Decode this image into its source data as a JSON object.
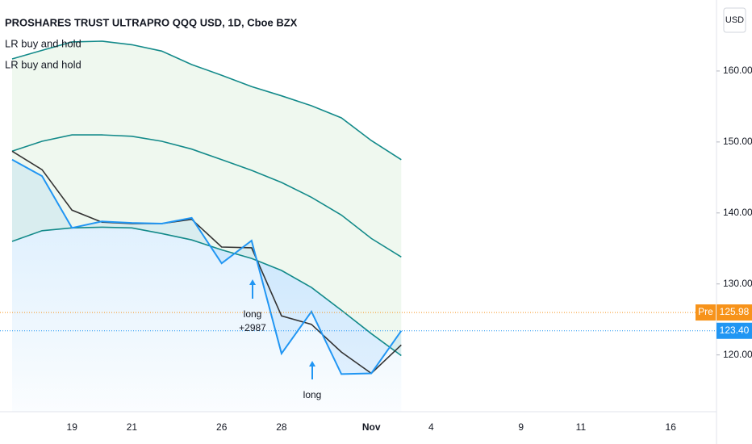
{
  "chart_data": {
    "type": "line",
    "title": "PROSHARES TRUST ULTRAPRO QQQ USD, 1D, Cboe BZX",
    "indicators": [
      "LR buy and hold",
      "LR buy and hold"
    ],
    "currency": "USD",
    "categories": [
      null,
      null,
      "19",
      null,
      "21",
      null,
      null,
      "26",
      null,
      "28",
      null,
      null,
      "Nov",
      null,
      "4",
      null,
      null,
      "9",
      null,
      "11",
      null,
      null,
      "16",
      null
    ],
    "series": [
      {
        "color": "#138a8a",
        "values": [
          161.7,
          162.9,
          164.1,
          164.2,
          163.7,
          162.8,
          160.9,
          159.4,
          157.8,
          156.5,
          155.1,
          153.4,
          150.2,
          147.5,
          null,
          null,
          null,
          null,
          null,
          null,
          null,
          null,
          null,
          null
        ]
      },
      {
        "color": "#138a8a",
        "values": [
          148.7,
          150.1,
          151.0,
          151.0,
          150.8,
          150.1,
          149.0,
          147.5,
          146.0,
          144.3,
          142.2,
          139.7,
          136.4,
          133.8,
          null,
          null,
          null,
          null,
          null,
          null,
          null,
          null,
          null,
          null
        ]
      },
      {
        "color": "#138a8a",
        "values": [
          136.0,
          137.5,
          137.9,
          138.0,
          137.9,
          137.1,
          136.2,
          134.8,
          133.6,
          131.9,
          129.5,
          126.3,
          123.0,
          119.9,
          null,
          null,
          null,
          null,
          null,
          null,
          null,
          null,
          null,
          null
        ]
      },
      {
        "color": "#333333",
        "values": [
          148.7,
          146.1,
          140.4,
          138.7,
          138.5,
          138.5,
          139.1,
          135.2,
          135.1,
          125.5,
          124.3,
          120.4,
          117.4,
          121.4,
          null,
          null,
          null,
          null,
          null,
          null,
          null,
          null,
          null,
          null
        ]
      },
      {
        "color": "#2196f3",
        "values": [
          147.5,
          145.2,
          137.9,
          138.8,
          138.6,
          138.5,
          139.3,
          132.9,
          136.1,
          120.2,
          126.1,
          117.3,
          117.4,
          123.4,
          null,
          null,
          null,
          null,
          null,
          null,
          null,
          null,
          null,
          null
        ]
      }
    ],
    "ylim": [
      112,
      170
    ],
    "yticks": [
      {
        "value": 120,
        "label": "120.00"
      },
      {
        "value": 130,
        "label": "130.00"
      },
      {
        "value": 140,
        "label": "140.00"
      },
      {
        "value": 150,
        "label": "150.00"
      },
      {
        "value": 160,
        "label": "160.00"
      }
    ],
    "price_lines": [
      {
        "label": "Pre",
        "value": 125.98,
        "color": "#f7931a"
      },
      {
        "value": 123.4,
        "value_label": "123.40",
        "color": "#2196f3"
      }
    ],
    "annotations": [
      {
        "lines": [
          "long",
          "+2987"
        ],
        "color": "#2196f3"
      },
      {
        "lines": [
          "long"
        ],
        "color": "#2196f3"
      }
    ]
  }
}
